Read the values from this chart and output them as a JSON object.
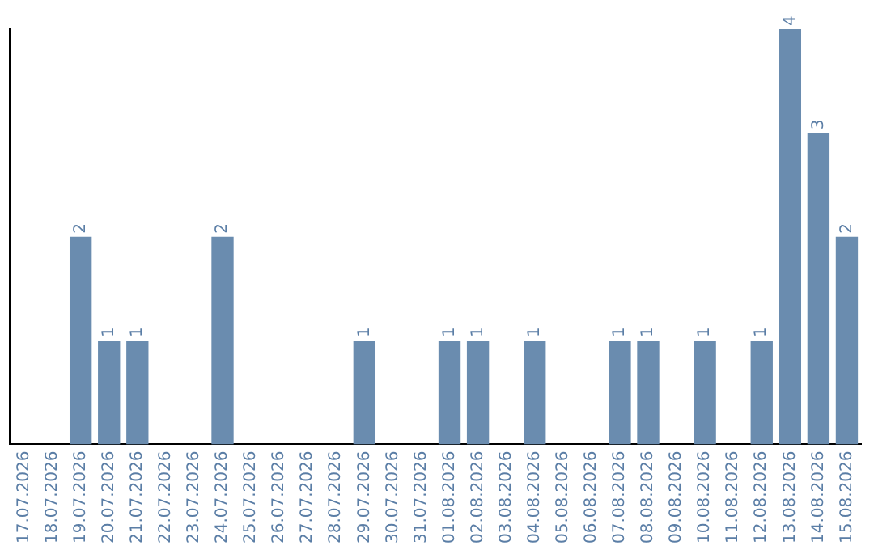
{
  "chart_data": {
    "type": "bar",
    "categories": [
      "17.07.2026",
      "18.07.2026",
      "19.07.2026",
      "20.07.2026",
      "21.07.2026",
      "22.07.2026",
      "23.07.2026",
      "24.07.2026",
      "25.07.2026",
      "26.07.2026",
      "27.07.2026",
      "28.07.2026",
      "29.07.2026",
      "30.07.2026",
      "31.07.2026",
      "01.08.2026",
      "02.08.2026",
      "03.08.2026",
      "04.08.2026",
      "05.08.2026",
      "06.08.2026",
      "07.08.2026",
      "08.08.2026",
      "09.08.2026",
      "10.08.2026",
      "11.08.2026",
      "12.08.2026",
      "13.08.2026",
      "14.08.2026",
      "15.08.2026"
    ],
    "values": [
      0,
      0,
      2,
      1,
      1,
      0,
      0,
      2,
      0,
      0,
      0,
      0,
      1,
      0,
      0,
      1,
      1,
      0,
      1,
      0,
      0,
      1,
      1,
      0,
      1,
      0,
      1,
      4,
      3,
      2
    ],
    "value_labels": [
      null,
      null,
      "2",
      "1",
      "1",
      null,
      null,
      "2",
      null,
      null,
      null,
      null,
      "1",
      null,
      null,
      "1",
      "1",
      null,
      "1",
      null,
      null,
      "1",
      "1",
      null,
      "1",
      null,
      "1",
      "4",
      "3",
      "2"
    ],
    "color": "#6a8caf",
    "grid": false,
    "legend": false,
    "tick_labels": "x"
  }
}
